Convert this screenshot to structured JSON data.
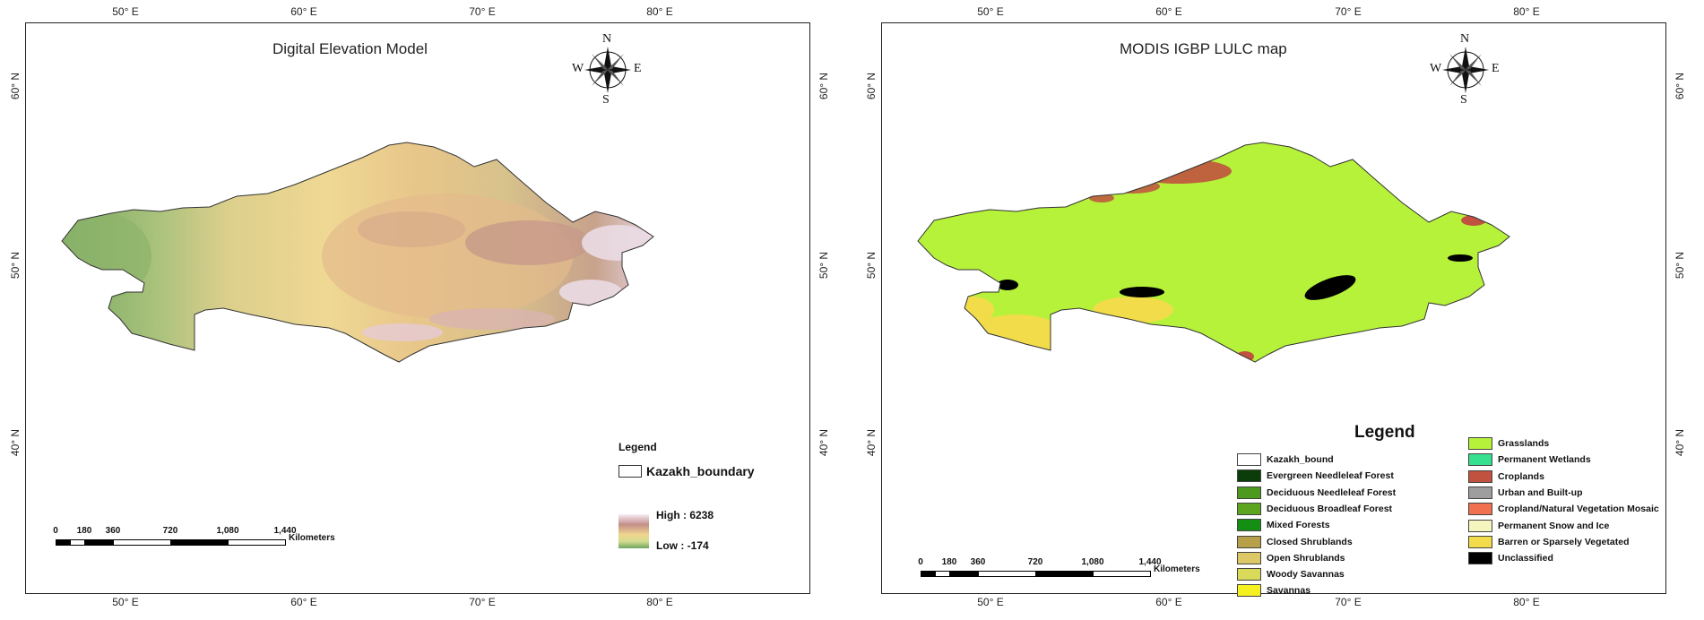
{
  "left_map": {
    "title": "Digital Elevation Model",
    "lon_ticks": [
      "50° E",
      "60° E",
      "70° E",
      "80° E"
    ],
    "lat_ticks": [
      "60° N",
      "50° N",
      "40° N"
    ],
    "compass": {
      "n": "N",
      "s": "S",
      "e": "E",
      "w": "W"
    },
    "scale": {
      "ticks": [
        "0",
        "180",
        "360",
        "720",
        "1,080",
        "1,440"
      ],
      "unit": "Kilometers"
    },
    "legend": {
      "header": "Legend",
      "boundary_label": "Kazakh_boundary",
      "high_label": "High : 6238",
      "low_label": "Low : -174"
    },
    "colors": {
      "low": "#6ea65c",
      "mid": "#f0d58f",
      "high": "#c48e89",
      "peak": "#f7ecf6"
    }
  },
  "right_map": {
    "title": "MODIS IGBP LULC map",
    "lon_ticks": [
      "50° E",
      "60° E",
      "70° E",
      "80° E"
    ],
    "lat_ticks": [
      "60° N",
      "50° N",
      "40° N"
    ],
    "compass": {
      "n": "N",
      "s": "S",
      "e": "E",
      "w": "W"
    },
    "scale": {
      "ticks": [
        "0",
        "180",
        "360",
        "720",
        "1,080",
        "1,440"
      ],
      "unit": "Kilometers"
    },
    "legend": {
      "title": "Legend",
      "classes": [
        {
          "label": "Kazakh_bound",
          "color": "#ffffff"
        },
        {
          "label": "Evergreen Needleleaf Forest",
          "color": "#0b3d0b"
        },
        {
          "label": "Deciduous Needleleaf Forest",
          "color": "#4e9a1e"
        },
        {
          "label": "Deciduous Broadleaf Forest",
          "color": "#5da51f"
        },
        {
          "label": "Mixed Forests",
          "color": "#148f14"
        },
        {
          "label": "Closed Shrublands",
          "color": "#b8a04a"
        },
        {
          "label": "Open Shrublands",
          "color": "#dcc866"
        },
        {
          "label": "Woody Savannas",
          "color": "#d9d95a"
        },
        {
          "label": "Savannas",
          "color": "#f5f020"
        },
        {
          "label": "Grasslands",
          "color": "#b7f23a"
        },
        {
          "label": "Permanent Wetlands",
          "color": "#35e08f"
        },
        {
          "label": "Croplands",
          "color": "#c0523f"
        },
        {
          "label": "Urban and Built-up",
          "color": "#9e9e9e"
        },
        {
          "label": "Cropland/Natural Vegetation Mosaic",
          "color": "#f07050"
        },
        {
          "label": "Permanent Snow and Ice",
          "color": "#f5f5c0"
        },
        {
          "label": "Barren or Sparsely Vegetated",
          "color": "#f2dc4a"
        },
        {
          "label": "Unclassified",
          "color": "#000000"
        }
      ]
    }
  }
}
